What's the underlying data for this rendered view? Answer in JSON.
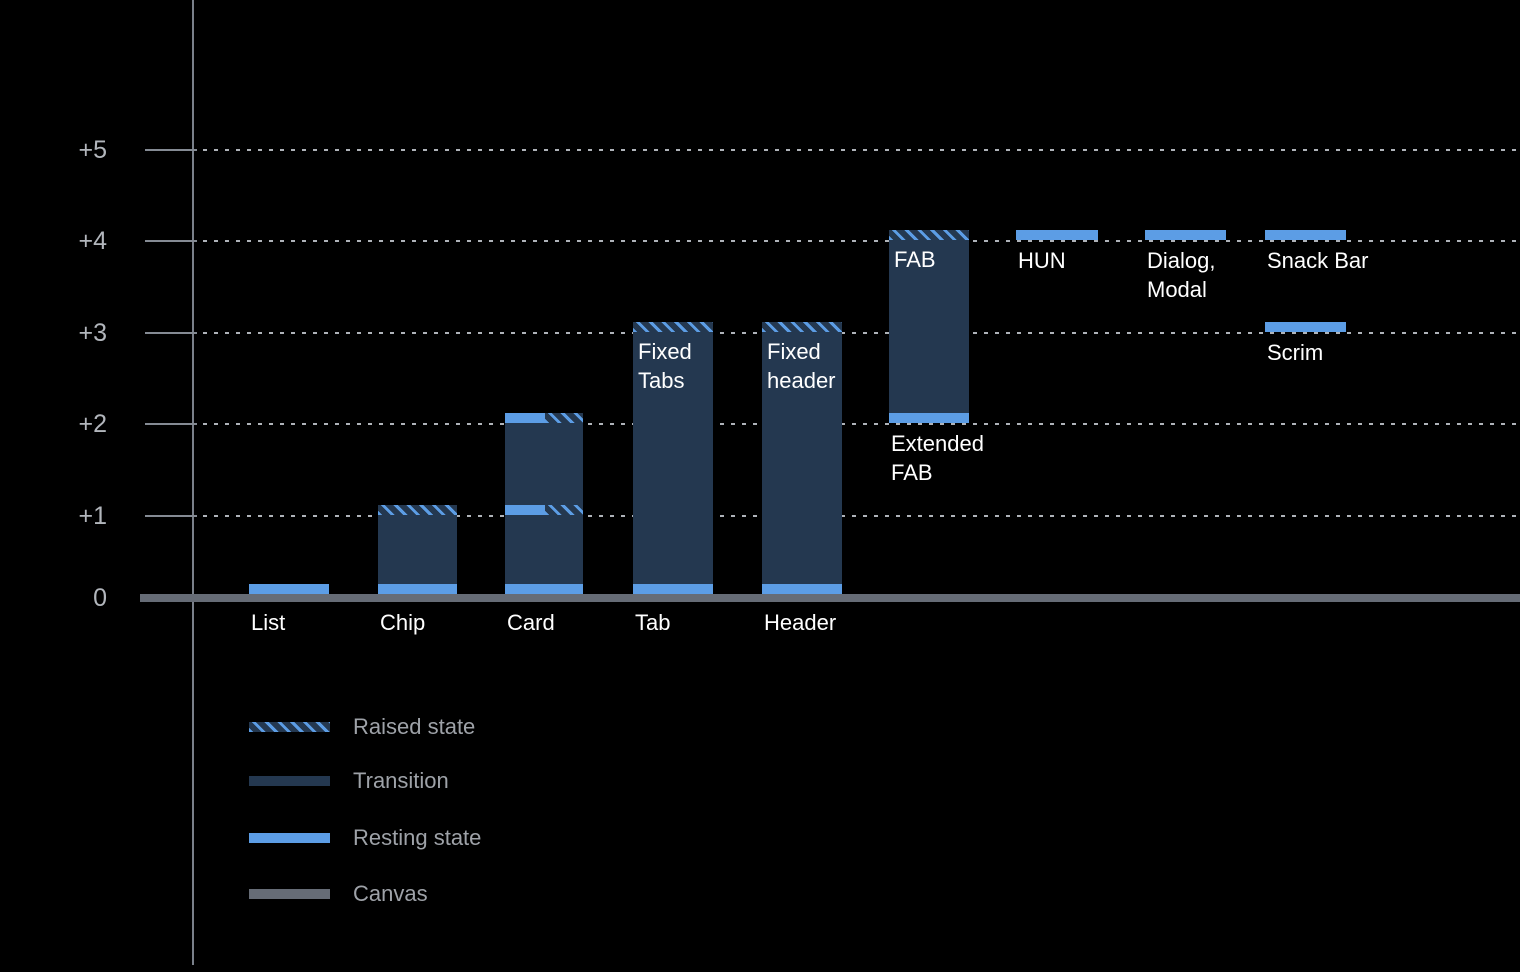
{
  "chart_data": {
    "type": "bar",
    "title": "",
    "xlabel": "",
    "ylabel": "",
    "ylim": [
      0,
      5.5
    ],
    "grid": "dotted-horizontal",
    "legend_position": "bottom-left",
    "y_ticks": [
      {
        "value": 5,
        "label": "+5"
      },
      {
        "value": 4,
        "label": "+4"
      },
      {
        "value": 3,
        "label": "+3"
      },
      {
        "value": 2,
        "label": "+2"
      },
      {
        "value": 1,
        "label": "+1"
      },
      {
        "value": 0,
        "label": "0"
      }
    ],
    "columns": [
      {
        "name": "list",
        "elements": [
          {
            "type": "resting",
            "elevation": 0,
            "span": "full"
          }
        ],
        "labels": [
          {
            "lines": [
              "List"
            ],
            "placement": "below-canvas"
          }
        ]
      },
      {
        "name": "chip",
        "elements": [
          {
            "type": "transition",
            "from": 0,
            "to": 1
          },
          {
            "type": "resting",
            "elevation": 0,
            "span": "full"
          },
          {
            "type": "raised",
            "elevation": 1,
            "span": "full"
          }
        ],
        "labels": [
          {
            "lines": [
              "Chip"
            ],
            "placement": "below-canvas"
          }
        ]
      },
      {
        "name": "card",
        "elements": [
          {
            "type": "transition",
            "from": 0,
            "to": 2
          },
          {
            "type": "resting",
            "elevation": 0,
            "span": "full"
          },
          {
            "type": "resting",
            "elevation": 1,
            "span": "left"
          },
          {
            "type": "raised",
            "elevation": 1,
            "span": "right"
          },
          {
            "type": "resting",
            "elevation": 2,
            "span": "left"
          },
          {
            "type": "raised",
            "elevation": 2,
            "span": "right"
          }
        ],
        "labels": [
          {
            "lines": [
              "Card"
            ],
            "placement": "below-canvas"
          }
        ]
      },
      {
        "name": "tab",
        "elements": [
          {
            "type": "transition",
            "from": 0,
            "to": 3
          },
          {
            "type": "resting",
            "elevation": 0,
            "span": "full"
          },
          {
            "type": "raised",
            "elevation": 3,
            "span": "full"
          }
        ],
        "labels": [
          {
            "lines": [
              "Tab"
            ],
            "placement": "below-canvas"
          },
          {
            "lines": [
              "Fixed",
              "Tabs"
            ],
            "placement": "inside-top",
            "elevation": 3
          }
        ]
      },
      {
        "name": "header",
        "elements": [
          {
            "type": "transition",
            "from": 0,
            "to": 3
          },
          {
            "type": "resting",
            "elevation": 0,
            "span": "full"
          },
          {
            "type": "raised",
            "elevation": 3,
            "span": "full"
          }
        ],
        "labels": [
          {
            "lines": [
              "Header"
            ],
            "placement": "below-canvas"
          },
          {
            "lines": [
              "Fixed",
              "header"
            ],
            "placement": "inside-top",
            "elevation": 3
          }
        ]
      },
      {
        "name": "fab",
        "elements": [
          {
            "type": "transition",
            "from": 2,
            "to": 4
          },
          {
            "type": "resting",
            "elevation": 2,
            "span": "full"
          },
          {
            "type": "raised",
            "elevation": 4,
            "span": "full"
          }
        ],
        "labels": [
          {
            "lines": [
              "FAB"
            ],
            "placement": "inside-top",
            "elevation": 4
          },
          {
            "lines": [
              "Extended",
              "FAB"
            ],
            "placement": "below-line",
            "elevation": 2
          }
        ]
      },
      {
        "name": "hun",
        "elements": [
          {
            "type": "resting",
            "elevation": 4,
            "span": "full"
          }
        ],
        "labels": [
          {
            "lines": [
              "HUN"
            ],
            "placement": "below-line",
            "elevation": 4
          }
        ]
      },
      {
        "name": "dialog-modal",
        "elements": [
          {
            "type": "resting",
            "elevation": 4,
            "span": "full"
          }
        ],
        "labels": [
          {
            "lines": [
              "Dialog,",
              "Modal"
            ],
            "placement": "below-line",
            "elevation": 4
          }
        ]
      },
      {
        "name": "snackbar-scrim",
        "elements": [
          {
            "type": "resting",
            "elevation": 4,
            "span": "full"
          },
          {
            "type": "resting",
            "elevation": 3,
            "span": "full"
          }
        ],
        "labels": [
          {
            "lines": [
              "Snack Bar"
            ],
            "placement": "below-line",
            "elevation": 4
          },
          {
            "lines": [
              "Scrim"
            ],
            "placement": "below-line",
            "elevation": 3
          }
        ]
      }
    ],
    "legend": [
      {
        "type": "raised",
        "label": "Raised state"
      },
      {
        "type": "transition",
        "label": "Transition"
      },
      {
        "type": "resting",
        "label": "Resting state"
      },
      {
        "type": "canvas",
        "label": "Canvas"
      }
    ],
    "colors": {
      "background": "#000000",
      "resting": "#5C9DE5",
      "transition": "#243850",
      "raised_stripe": "#5C9DE5",
      "canvas_line": "#666C76",
      "axis": "#7A808A",
      "gridline": "#AFB3B9",
      "tick_label": "#B2B6BC",
      "bar_label": "#FFFFFF",
      "legend_label": "#9EA2A8"
    }
  }
}
